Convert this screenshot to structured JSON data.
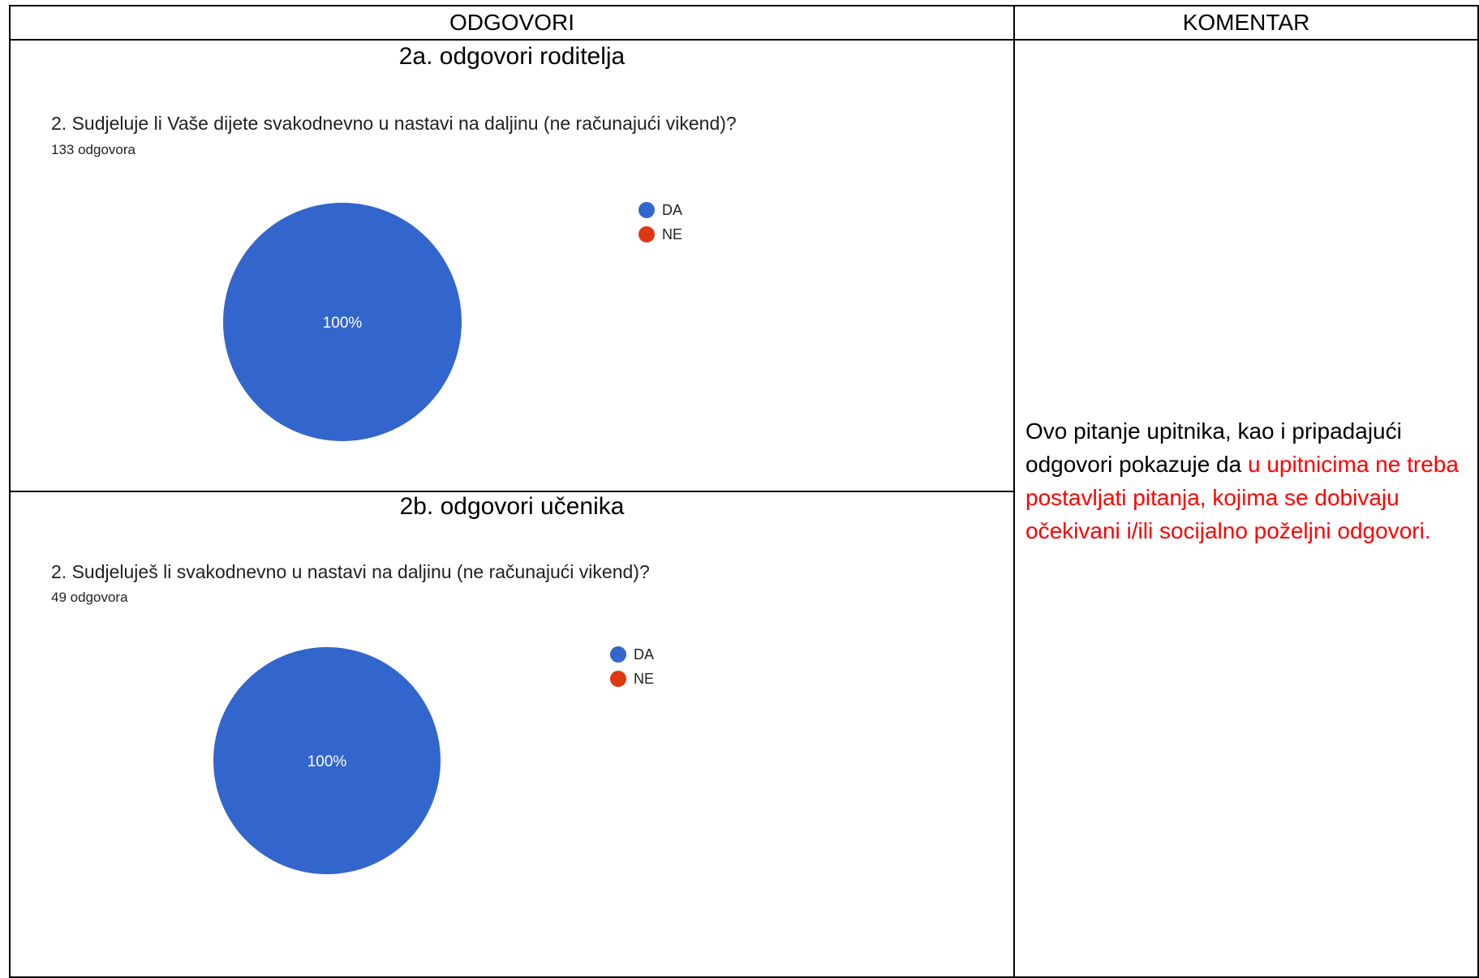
{
  "table": {
    "col_answers": "ODGOVORI",
    "col_comment": "KOMENTAR"
  },
  "sections": [
    {
      "title": "2a. odgovori roditelja",
      "question": "2. Sudjeluje li Vaše dijete svakodnevno u nastavi na daljinu (ne računajući vikend)?",
      "count": "133 odgovora",
      "legend": [
        {
          "label": "DA",
          "color": "#3366cc"
        },
        {
          "label": "NE",
          "color": "#dc3912"
        }
      ],
      "slice_label": "100%"
    },
    {
      "title": "2b. odgovori učenika",
      "question": "2. Sudjeluješ li svakodnevno u nastavi na daljinu (ne računajući vikend)?",
      "count": "49 odgovora",
      "legend": [
        {
          "label": "DA",
          "color": "#3366cc"
        },
        {
          "label": "NE",
          "color": "#dc3912"
        }
      ],
      "slice_label": "100%"
    }
  ],
  "chart_data": [
    {
      "type": "pie",
      "categories": [
        "DA",
        "NE"
      ],
      "values": [
        100,
        0
      ],
      "colors": [
        "#3366cc",
        "#dc3912"
      ],
      "data_labels": [
        "100%"
      ],
      "legend_position": "right"
    },
    {
      "type": "pie",
      "categories": [
        "DA",
        "NE"
      ],
      "values": [
        100,
        0
      ],
      "colors": [
        "#3366cc",
        "#dc3912"
      ],
      "data_labels": [
        "100%"
      ],
      "legend_position": "right"
    }
  ],
  "comment": {
    "text_plain": "Ovo pitanje upitnika, kao i pripadajući odgovori pokazuje da ",
    "text_highlight": "u upitnicima ne treba postavljati pitanja, kojima se dobivaju očekivani i/ili socijalno poželjni odgovori.",
    "highlight_color": "#ff0000"
  }
}
